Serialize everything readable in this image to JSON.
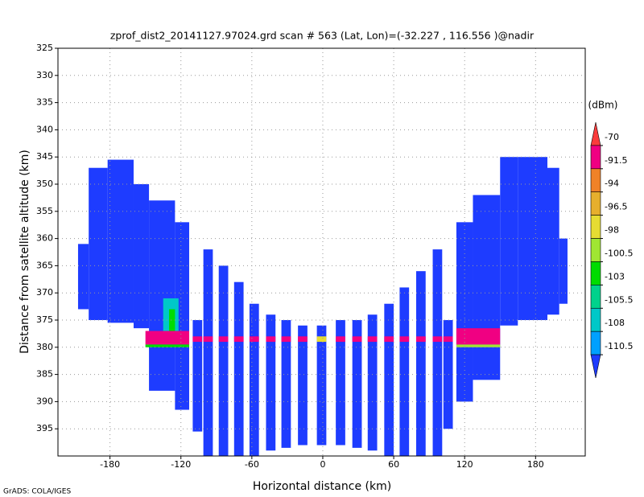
{
  "chart_data": {
    "type": "shaded",
    "title": "zprof_dist2_20141127.97024.grd  scan # 563  (Lat, Lon)=(-32.227 , 116.556 )@nadir",
    "x_label": "Horizontal distance (km)",
    "y_label": "Distance from satellite altitude (km)",
    "colorbar_label": "(dBm)",
    "footer": "GrADS: COLA/IGES",
    "xlim": [
      -224,
      222
    ],
    "ylim": [
      325,
      400
    ],
    "y_inverted": true,
    "xticks": [
      -180,
      -120,
      -60,
      0,
      60,
      120,
      180
    ],
    "yticks": [
      325,
      330,
      335,
      340,
      345,
      350,
      355,
      360,
      365,
      370,
      375,
      380,
      385,
      390,
      395
    ],
    "grid": true,
    "levels": [
      -70,
      -91.5,
      -94,
      -96.5,
      -98,
      -100.5,
      -103,
      -105.5,
      -108,
      -110.5
    ],
    "colors": [
      "#fa3c3c",
      "#f00082",
      "#f08228",
      "#e6af2d",
      "#e6dc32",
      "#a0e632",
      "#00dc00",
      "#00d28c",
      "#00c8c8",
      "#00a0ff",
      "#1e3cff"
    ],
    "cells": [
      {
        "x": [
          -207,
          -198
        ],
        "y": [
          361,
          373
        ],
        "value": -112
      },
      {
        "x": [
          -198,
          -182
        ],
        "y": [
          347,
          375
        ],
        "value": -112
      },
      {
        "x": [
          -182,
          -160
        ],
        "y": [
          345.5,
          375.5
        ],
        "value": -112
      },
      {
        "x": [
          -160,
          -147
        ],
        "y": [
          350,
          376.5
        ],
        "value": -112
      },
      {
        "x": [
          -147,
          -125
        ],
        "y": [
          353,
          388
        ],
        "value": -112
      },
      {
        "x": [
          -125,
          -113
        ],
        "y": [
          357,
          391.5
        ],
        "value": -112
      },
      {
        "x": [
          113,
          127
        ],
        "y": [
          357,
          390
        ],
        "value": -112
      },
      {
        "x": [
          127,
          150
        ],
        "y": [
          352,
          386
        ],
        "value": -112
      },
      {
        "x": [
          150,
          165
        ],
        "y": [
          345,
          376
        ],
        "value": -112
      },
      {
        "x": [
          165,
          190
        ],
        "y": [
          345,
          375
        ],
        "value": -112
      },
      {
        "x": [
          190,
          200
        ],
        "y": [
          347,
          374
        ],
        "value": -112
      },
      {
        "x": [
          200,
          207
        ],
        "y": [
          360,
          372
        ],
        "value": -112
      },
      {
        "x": [
          -110,
          -102
        ],
        "y": [
          375,
          395.5
        ],
        "value": -112
      },
      {
        "x": [
          -101,
          -93
        ],
        "y": [
          362,
          400
        ],
        "value": -112
      },
      {
        "x": [
          -88,
          -80
        ],
        "y": [
          365,
          400
        ],
        "value": -112
      },
      {
        "x": [
          -75,
          -67
        ],
        "y": [
          368,
          400
        ],
        "value": -112
      },
      {
        "x": [
          -62,
          -54
        ],
        "y": [
          372,
          400
        ],
        "value": -112
      },
      {
        "x": [
          -48,
          -40
        ],
        "y": [
          374,
          399
        ],
        "value": -112
      },
      {
        "x": [
          -35,
          -27
        ],
        "y": [
          375,
          398.5
        ],
        "value": -112
      },
      {
        "x": [
          -21,
          -13
        ],
        "y": [
          376,
          398
        ],
        "value": -112
      },
      {
        "x": [
          -5,
          3
        ],
        "y": [
          376,
          398
        ],
        "value": -112
      },
      {
        "x": [
          11,
          19
        ],
        "y": [
          375,
          398
        ],
        "value": -112
      },
      {
        "x": [
          25,
          33
        ],
        "y": [
          375,
          398.5
        ],
        "value": -112
      },
      {
        "x": [
          38,
          46
        ],
        "y": [
          374,
          399
        ],
        "value": -112
      },
      {
        "x": [
          52,
          60
        ],
        "y": [
          372,
          400
        ],
        "value": -112
      },
      {
        "x": [
          65,
          73
        ],
        "y": [
          369,
          400
        ],
        "value": -112
      },
      {
        "x": [
          79,
          87
        ],
        "y": [
          366,
          400
        ],
        "value": -112
      },
      {
        "x": [
          93,
          101
        ],
        "y": [
          362,
          400
        ],
        "value": -112
      },
      {
        "x": [
          102,
          110
        ],
        "y": [
          375,
          395
        ],
        "value": -112
      },
      {
        "x": [
          -135,
          -122
        ],
        "y": [
          371,
          377
        ],
        "value": -107
      },
      {
        "x": [
          -130,
          -125
        ],
        "y": [
          373,
          377
        ],
        "value": -102
      },
      {
        "x": [
          -150,
          -113
        ],
        "y": [
          377,
          379.5
        ],
        "value": -85
      },
      {
        "x": [
          113,
          150
        ],
        "y": [
          376.5,
          379.5
        ],
        "value": -85
      },
      {
        "x": [
          -150,
          -113
        ],
        "y": [
          379.5,
          380
        ],
        "value": -102
      },
      {
        "x": [
          113,
          150
        ],
        "y": [
          379.5,
          380
        ],
        "value": -99
      },
      {
        "x": [
          -110,
          -102
        ],
        "y": [
          378,
          379
        ],
        "value": -85
      },
      {
        "x": [
          -101,
          -93
        ],
        "y": [
          378,
          379
        ],
        "value": -85
      },
      {
        "x": [
          -88,
          -80
        ],
        "y": [
          378,
          379
        ],
        "value": -85
      },
      {
        "x": [
          -75,
          -67
        ],
        "y": [
          378,
          379
        ],
        "value": -85
      },
      {
        "x": [
          -62,
          -54
        ],
        "y": [
          378,
          379
        ],
        "value": -85
      },
      {
        "x": [
          -48,
          -40
        ],
        "y": [
          378,
          379
        ],
        "value": -85
      },
      {
        "x": [
          -35,
          -27
        ],
        "y": [
          378,
          379
        ],
        "value": -85
      },
      {
        "x": [
          -21,
          -13
        ],
        "y": [
          378,
          379
        ],
        "value": -85
      },
      {
        "x": [
          -5,
          3
        ],
        "y": [
          378,
          379
        ],
        "value": -97
      },
      {
        "x": [
          11,
          19
        ],
        "y": [
          378,
          379
        ],
        "value": -85
      },
      {
        "x": [
          25,
          33
        ],
        "y": [
          378,
          379
        ],
        "value": -85
      },
      {
        "x": [
          38,
          46
        ],
        "y": [
          378,
          379
        ],
        "value": -85
      },
      {
        "x": [
          52,
          60
        ],
        "y": [
          378,
          379
        ],
        "value": -85
      },
      {
        "x": [
          65,
          73
        ],
        "y": [
          378,
          379
        ],
        "value": -85
      },
      {
        "x": [
          79,
          87
        ],
        "y": [
          378,
          379
        ],
        "value": -85
      },
      {
        "x": [
          93,
          101
        ],
        "y": [
          378,
          379
        ],
        "value": -85
      },
      {
        "x": [
          102,
          110
        ],
        "y": [
          378,
          379
        ],
        "value": -85
      }
    ]
  }
}
